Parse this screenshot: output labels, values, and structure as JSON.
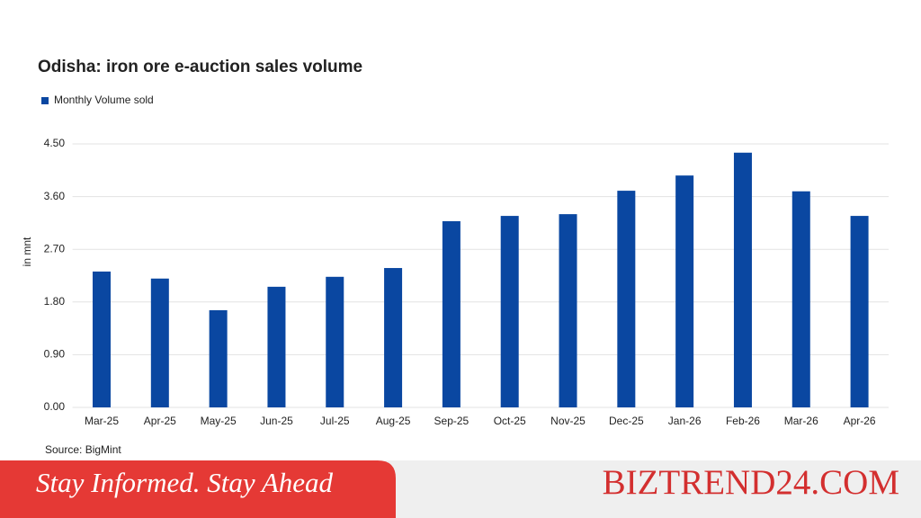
{
  "chart_data": {
    "type": "bar",
    "title": "Odisha: iron ore e-auction sales volume",
    "y_label": "in mnt",
    "source": "Source: BigMint",
    "categories": [
      "Mar-25",
      "Apr-25",
      "May-25",
      "Jun-25",
      "Jul-25",
      "Aug-25",
      "Sep-25",
      "Oct-25",
      "Nov-25",
      "Dec-25",
      "Jan-26",
      "Feb-26",
      "Mar-26",
      "Apr-26"
    ],
    "series": [
      {
        "name": "Monthly Volume sold",
        "color": "#0a47a1",
        "values": [
          2.32,
          2.2,
          1.66,
          2.06,
          2.23,
          2.38,
          3.18,
          3.27,
          3.3,
          3.7,
          3.96,
          4.35,
          3.69,
          3.27
        ]
      }
    ],
    "ylim": [
      0,
      4.5
    ],
    "yticks": [
      {
        "value": 0,
        "label": "0.00"
      },
      {
        "value": 0.9,
        "label": "0.90"
      },
      {
        "value": 1.8,
        "label": "1.80"
      },
      {
        "value": 2.7,
        "label": "2.70"
      },
      {
        "value": 3.6,
        "label": "3.60"
      },
      {
        "value": 4.5,
        "label": "4.50"
      }
    ],
    "grid": true
  },
  "footer": {
    "tagline": "Stay Informed. Stay Ahead",
    "brand": "BIZTREND24.COM"
  }
}
